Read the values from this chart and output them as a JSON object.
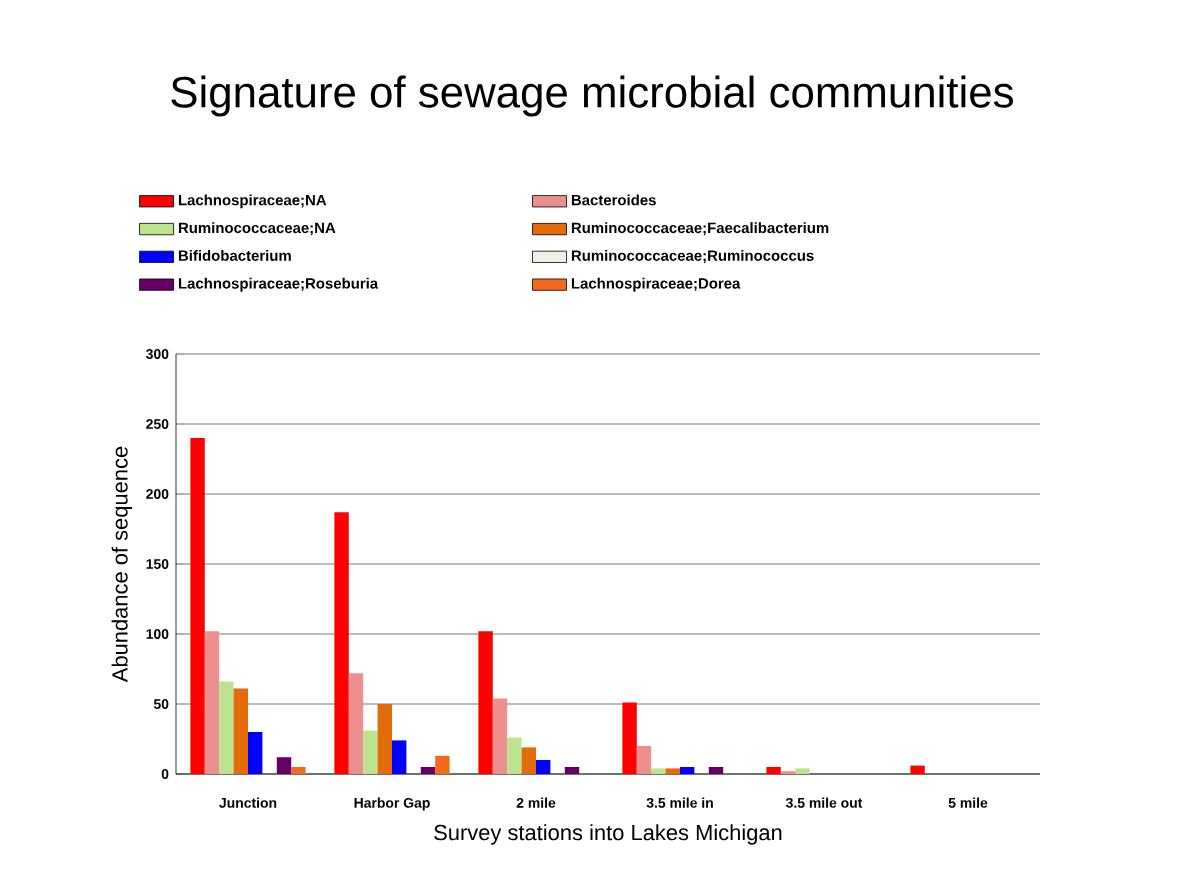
{
  "chart_data": {
    "type": "bar",
    "title": "Signature of sewage microbial communities",
    "xlabel": "Survey stations into Lakes Michigan",
    "ylabel": "Abundance of sequence",
    "categories": [
      "Junction",
      "Harbor Gap",
      "2 mile",
      "3.5 mile in",
      "3.5 mile out",
      "5 mile"
    ],
    "ylim": [
      0,
      300
    ],
    "yticks": [
      0,
      50,
      100,
      150,
      200,
      250,
      300
    ],
    "grid": "y",
    "legend": "top",
    "series": [
      {
        "name": "Lachnospiraceae;NA",
        "color": "#ff0000",
        "values": [
          240,
          187,
          102,
          51,
          5,
          6
        ]
      },
      {
        "name": "Bacteroides",
        "color": "#ec8f8f",
        "values": [
          102,
          72,
          54,
          20,
          2,
          0
        ]
      },
      {
        "name": "Ruminococcaceae;NA",
        "color": "#bde38f",
        "values": [
          66,
          31,
          26,
          4,
          4,
          0
        ]
      },
      {
        "name": "Ruminococcaceae;Faecalibacterium",
        "color": "#e36c0a",
        "values": [
          61,
          50,
          19,
          4,
          0,
          0
        ]
      },
      {
        "name": "Bifidobacterium",
        "color": "#0000ff",
        "values": [
          30,
          24,
          10,
          5,
          0,
          0
        ]
      },
      {
        "name": "Ruminococcaceae;Ruminococcus",
        "color": "#f0f0e6",
        "values": [
          0,
          0,
          0,
          0,
          0,
          0
        ]
      },
      {
        "name": "Lachnospiraceae;Roseburia",
        "color": "#660066",
        "values": [
          12,
          5,
          5,
          5,
          0,
          0
        ]
      },
      {
        "name": "Lachnospiraceae;Dorea",
        "color": "#f26b1d",
        "values": [
          5,
          13,
          0,
          0,
          0,
          0
        ]
      }
    ]
  }
}
